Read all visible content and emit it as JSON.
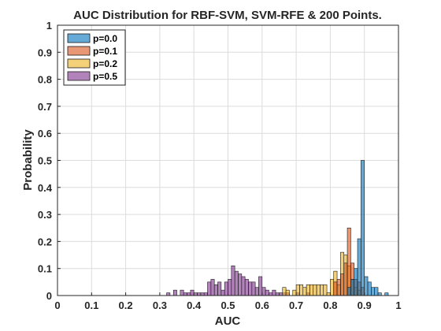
{
  "chart_data": {
    "type": "bar",
    "title": "AUC Distribution for RBF-SVM, SVM-RFE & 200 Points.",
    "xlabel": "AUC",
    "ylabel": "Probability",
    "xlim": [
      0,
      1
    ],
    "ylim": [
      0,
      1
    ],
    "xticks": [
      "0",
      "0.1",
      "0.2",
      "0.3",
      "0.4",
      "0.5",
      "0.6",
      "0.7",
      "0.8",
      "0.9",
      "1"
    ],
    "yticks": [
      "0",
      "0.1",
      "0.2",
      "0.3",
      "0.4",
      "0.5",
      "0.6",
      "0.7",
      "0.8",
      "0.9",
      "1"
    ],
    "bin_width": 0.01,
    "grid": true,
    "legend_position": "top-left",
    "series": [
      {
        "name": "p=0.5",
        "color": "#7E2F8E",
        "bins": [
          [
            0.32,
            0.01
          ],
          [
            0.34,
            0.02
          ],
          [
            0.36,
            0.02
          ],
          [
            0.37,
            0.01
          ],
          [
            0.38,
            0.01
          ],
          [
            0.39,
            0.02
          ],
          [
            0.4,
            0.01
          ],
          [
            0.41,
            0.01
          ],
          [
            0.42,
            0.01
          ],
          [
            0.43,
            0.01
          ],
          [
            0.44,
            0.05
          ],
          [
            0.45,
            0.06
          ],
          [
            0.46,
            0.04
          ],
          [
            0.47,
            0.05
          ],
          [
            0.48,
            0.02
          ],
          [
            0.49,
            0.05
          ],
          [
            0.5,
            0.06
          ],
          [
            0.51,
            0.11
          ],
          [
            0.52,
            0.09
          ],
          [
            0.53,
            0.08
          ],
          [
            0.54,
            0.07
          ],
          [
            0.55,
            0.06
          ],
          [
            0.56,
            0.05
          ],
          [
            0.57,
            0.05
          ],
          [
            0.58,
            0.03
          ],
          [
            0.59,
            0.07
          ],
          [
            0.6,
            0.03
          ],
          [
            0.61,
            0.02
          ],
          [
            0.62,
            0.01
          ],
          [
            0.63,
            0.02
          ],
          [
            0.64,
            0.01
          ],
          [
            0.65,
            0.01
          ],
          [
            0.66,
            0.01
          ],
          [
            0.67,
            0.01
          ],
          [
            0.7,
            0.01
          ],
          [
            0.73,
            0.01
          ]
        ]
      },
      {
        "name": "p=0.2",
        "color": "#EDB120",
        "bins": [
          [
            0.66,
            0.03
          ],
          [
            0.67,
            0.02
          ],
          [
            0.69,
            0.02
          ],
          [
            0.7,
            0.04
          ],
          [
            0.71,
            0.04
          ],
          [
            0.72,
            0.03
          ],
          [
            0.73,
            0.04
          ],
          [
            0.74,
            0.04
          ],
          [
            0.75,
            0.04
          ],
          [
            0.76,
            0.04
          ],
          [
            0.77,
            0.04
          ],
          [
            0.78,
            0.04
          ],
          [
            0.79,
            0.01
          ],
          [
            0.8,
            0.06
          ],
          [
            0.81,
            0.09
          ],
          [
            0.82,
            0.04
          ],
          [
            0.83,
            0.16
          ],
          [
            0.84,
            0.15
          ],
          [
            0.85,
            0.11
          ],
          [
            0.86,
            0.06
          ],
          [
            0.87,
            0.03
          ],
          [
            0.88,
            0.02
          ]
        ]
      },
      {
        "name": "p=0.1",
        "color": "#D95319",
        "bins": [
          [
            0.81,
            0.05
          ],
          [
            0.82,
            0.06
          ],
          [
            0.83,
            0.08
          ],
          [
            0.84,
            0.12
          ],
          [
            0.85,
            0.25
          ],
          [
            0.86,
            0.12
          ],
          [
            0.87,
            0.06
          ],
          [
            0.88,
            0.05
          ],
          [
            0.89,
            0.03
          ]
        ]
      },
      {
        "name": "p=0.0",
        "color": "#0072BD",
        "bins": [
          [
            0.85,
            0.03
          ],
          [
            0.86,
            0.06
          ],
          [
            0.87,
            0.1
          ],
          [
            0.88,
            0.21
          ],
          [
            0.89,
            0.5
          ],
          [
            0.9,
            0.07
          ],
          [
            0.91,
            0.05
          ],
          [
            0.92,
            0.03
          ],
          [
            0.93,
            0.03
          ],
          [
            0.94,
            0.01
          ],
          [
            0.96,
            0.01
          ]
        ]
      }
    ],
    "legend_order": [
      "p=0.0",
      "p=0.1",
      "p=0.2",
      "p=0.5"
    ]
  }
}
